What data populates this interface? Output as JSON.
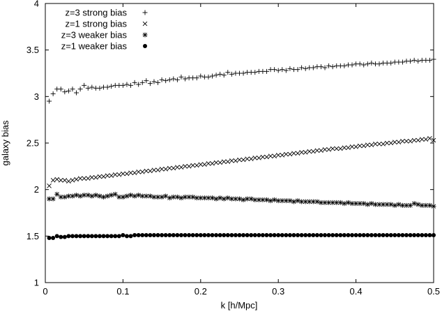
{
  "chart_data": {
    "type": "scatter",
    "title": "",
    "xlabel": "k [h/Mpc]",
    "ylabel": "galaxy bias",
    "xlim": [
      0,
      0.5
    ],
    "ylim": [
      1,
      4
    ],
    "grid": false,
    "legend_position": "top-left",
    "x_ticks": [
      0,
      0.1,
      0.2,
      0.3,
      0.4,
      0.5
    ],
    "x_tick_labels": [
      "0",
      "0.1",
      "0.2",
      "0.3",
      "0.4",
      "0.5"
    ],
    "y_ticks": [
      1,
      1.5,
      2,
      2.5,
      3,
      3.5,
      4
    ],
    "y_tick_labels": [
      "1",
      "1.5",
      "2",
      "2.5",
      "3",
      "3.5",
      "4"
    ],
    "k_start": 0.005,
    "k_step": 0.005,
    "series": [
      {
        "name": "z=3 strong bias",
        "marker": "plus",
        "values": [
          2.95,
          3.03,
          3.08,
          3.08,
          3.05,
          3.06,
          3.08,
          3.04,
          3.08,
          3.12,
          3.09,
          3.1,
          3.09,
          3.09,
          3.1,
          3.1,
          3.11,
          3.12,
          3.12,
          3.12,
          3.13,
          3.12,
          3.15,
          3.13,
          3.15,
          3.17,
          3.14,
          3.16,
          3.15,
          3.18,
          3.17,
          3.18,
          3.19,
          3.18,
          3.21,
          3.19,
          3.2,
          3.2,
          3.2,
          3.22,
          3.21,
          3.21,
          3.22,
          3.23,
          3.24,
          3.23,
          3.26,
          3.24,
          3.25,
          3.25,
          3.25,
          3.26,
          3.26,
          3.26,
          3.27,
          3.27,
          3.27,
          3.29,
          3.29,
          3.28,
          3.29,
          3.28,
          3.3,
          3.29,
          3.29,
          3.31,
          3.3,
          3.31,
          3.31,
          3.32,
          3.32,
          3.31,
          3.33,
          3.32,
          3.33,
          3.33,
          3.33,
          3.34,
          3.34,
          3.35,
          3.35,
          3.34,
          3.35,
          3.36,
          3.35,
          3.35,
          3.36,
          3.36,
          3.36,
          3.37,
          3.37,
          3.37,
          3.38,
          3.38,
          3.39,
          3.38,
          3.39,
          3.39,
          3.39,
          3.4
        ]
      },
      {
        "name": "z=1 strong bias",
        "marker": "cross",
        "values": [
          2.04,
          2.1,
          2.11,
          2.1,
          2.1,
          2.09,
          2.1,
          2.11,
          2.12,
          2.12,
          2.12,
          2.13,
          2.13,
          2.14,
          2.14,
          2.15,
          2.15,
          2.16,
          2.16,
          2.17,
          2.17,
          2.18,
          2.18,
          2.19,
          2.19,
          2.2,
          2.2,
          2.21,
          2.21,
          2.22,
          2.22,
          2.23,
          2.23,
          2.24,
          2.24,
          2.25,
          2.25,
          2.26,
          2.26,
          2.27,
          2.27,
          2.28,
          2.28,
          2.29,
          2.29,
          2.3,
          2.3,
          2.31,
          2.31,
          2.32,
          2.32,
          2.33,
          2.33,
          2.34,
          2.34,
          2.35,
          2.35,
          2.36,
          2.36,
          2.37,
          2.37,
          2.38,
          2.38,
          2.39,
          2.39,
          2.4,
          2.4,
          2.41,
          2.41,
          2.42,
          2.42,
          2.43,
          2.43,
          2.44,
          2.44,
          2.44,
          2.45,
          2.45,
          2.46,
          2.46,
          2.47,
          2.47,
          2.48,
          2.48,
          2.49,
          2.49,
          2.49,
          2.5,
          2.5,
          2.51,
          2.51,
          2.52,
          2.52,
          2.52,
          2.53,
          2.53,
          2.54,
          2.54,
          2.55,
          2.53
        ]
      },
      {
        "name": "z=3 weaker bias",
        "marker": "star",
        "values": [
          1.9,
          1.9,
          1.95,
          1.92,
          1.92,
          1.93,
          1.93,
          1.94,
          1.93,
          1.94,
          1.94,
          1.93,
          1.94,
          1.93,
          1.92,
          1.93,
          1.94,
          1.95,
          1.92,
          1.92,
          1.93,
          1.94,
          1.93,
          1.94,
          1.93,
          1.93,
          1.93,
          1.92,
          1.92,
          1.92,
          1.93,
          1.91,
          1.92,
          1.92,
          1.91,
          1.92,
          1.92,
          1.92,
          1.91,
          1.91,
          1.91,
          1.91,
          1.91,
          1.9,
          1.91,
          1.9,
          1.91,
          1.9,
          1.9,
          1.9,
          1.89,
          1.9,
          1.9,
          1.89,
          1.89,
          1.89,
          1.89,
          1.88,
          1.89,
          1.88,
          1.88,
          1.88,
          1.88,
          1.87,
          1.88,
          1.87,
          1.87,
          1.87,
          1.87,
          1.87,
          1.86,
          1.86,
          1.86,
          1.86,
          1.86,
          1.86,
          1.85,
          1.86,
          1.85,
          1.85,
          1.85,
          1.85,
          1.84,
          1.85,
          1.84,
          1.84,
          1.84,
          1.84,
          1.84,
          1.83,
          1.84,
          1.83,
          1.83,
          1.83,
          1.85,
          1.84,
          1.83,
          1.83,
          1.83,
          1.82
        ]
      },
      {
        "name": "z=1 weaker bias",
        "marker": "dot",
        "values": [
          1.48,
          1.48,
          1.5,
          1.49,
          1.49,
          1.5,
          1.5,
          1.5,
          1.5,
          1.5,
          1.5,
          1.5,
          1.5,
          1.5,
          1.5,
          1.5,
          1.5,
          1.5,
          1.5,
          1.51,
          1.5,
          1.5,
          1.51,
          1.51,
          1.51,
          1.51,
          1.51,
          1.51,
          1.51,
          1.51,
          1.51,
          1.51,
          1.51,
          1.51,
          1.51,
          1.51,
          1.51,
          1.51,
          1.51,
          1.51,
          1.51,
          1.51,
          1.51,
          1.51,
          1.51,
          1.51,
          1.51,
          1.51,
          1.51,
          1.51,
          1.51,
          1.51,
          1.51,
          1.51,
          1.51,
          1.51,
          1.51,
          1.51,
          1.51,
          1.51,
          1.51,
          1.51,
          1.51,
          1.51,
          1.51,
          1.51,
          1.51,
          1.51,
          1.51,
          1.51,
          1.51,
          1.51,
          1.51,
          1.51,
          1.51,
          1.51,
          1.51,
          1.51,
          1.51,
          1.51,
          1.51,
          1.51,
          1.51,
          1.51,
          1.51,
          1.51,
          1.51,
          1.51,
          1.51,
          1.51,
          1.51,
          1.51,
          1.51,
          1.51,
          1.51,
          1.51,
          1.51,
          1.51,
          1.51,
          1.51
        ]
      }
    ]
  }
}
